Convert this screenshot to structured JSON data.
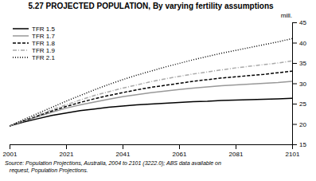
{
  "chart_data": {
    "type": "line",
    "title": "5.27  PROJECTED POPULATION, By varying fertility assumptions",
    "y_label": "mill.",
    "annotations": [
      "Source: Population Projections, Australia, 2004 to 2101 (3222.0); ABS data available on",
      "   request, Population Projections."
    ],
    "x": [
      2001,
      2006,
      2011,
      2016,
      2021,
      2026,
      2031,
      2036,
      2041,
      2046,
      2051,
      2056,
      2061,
      2066,
      2071,
      2076,
      2081,
      2086,
      2091,
      2096,
      2101
    ],
    "series": [
      {
        "name": "TFR 1.5",
        "color": "#000000",
        "line_style": "solid",
        "values": [
          19.5,
          20.5,
          21.3,
          22.1,
          22.7,
          23.3,
          23.7,
          24.1,
          24.4,
          24.7,
          24.9,
          25.1,
          25.3,
          25.5,
          25.6,
          25.8,
          25.9,
          26.0,
          26.1,
          26.2,
          26.3
        ]
      },
      {
        "name": "TFR 1.7",
        "color": "#999999",
        "line_style": "solid",
        "values": [
          19.5,
          20.7,
          21.8,
          22.9,
          23.9,
          24.7,
          25.4,
          26.1,
          26.7,
          27.2,
          27.7,
          28.1,
          28.5,
          28.8,
          29.1,
          29.4,
          29.6,
          29.8,
          30.0,
          30.2,
          30.5
        ]
      },
      {
        "name": "TFR 1.8",
        "color": "#000000",
        "line_style": "dashed",
        "values": [
          19.5,
          20.8,
          22.0,
          23.2,
          24.3,
          25.3,
          26.2,
          27.0,
          27.7,
          28.4,
          29.0,
          29.5,
          30.0,
          30.5,
          30.9,
          31.3,
          31.6,
          31.9,
          32.2,
          32.6,
          33.0
        ]
      },
      {
        "name": "TFR 1.9",
        "color": "#aaaaaa",
        "line_style": "dashdot",
        "values": [
          19.5,
          20.9,
          22.2,
          23.5,
          24.7,
          25.9,
          27.0,
          27.9,
          28.8,
          29.6,
          30.4,
          31.1,
          31.7,
          32.3,
          32.8,
          33.3,
          33.8,
          34.2,
          34.6,
          35.0,
          35.5
        ]
      },
      {
        "name": "TFR 2.1",
        "color": "#000000",
        "line_style": "dotted",
        "values": [
          19.5,
          21.1,
          22.6,
          24.1,
          25.6,
          27.0,
          28.4,
          29.7,
          30.9,
          32.0,
          33.0,
          34.0,
          34.9,
          35.8,
          36.6,
          37.4,
          38.1,
          38.8,
          39.5,
          40.2,
          41.0
        ]
      }
    ],
    "xlim": [
      2001,
      2101
    ],
    "xticks": [
      2001,
      2021,
      2041,
      2061,
      2081,
      2101
    ],
    "ylim": [
      15,
      45
    ],
    "yticks": [
      15,
      20,
      25,
      30,
      35,
      40,
      45
    ],
    "grid": false,
    "legend": "upper left"
  }
}
